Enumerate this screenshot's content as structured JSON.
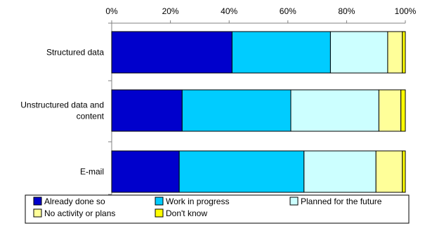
{
  "chart_data": {
    "type": "bar",
    "orientation": "horizontal",
    "stacked": true,
    "percent_stacked": true,
    "title": "",
    "xlabel": "",
    "ylabel": "",
    "xlim": [
      0,
      100
    ],
    "x_ticks": [
      "0%",
      "20%",
      "40%",
      "60%",
      "80%",
      "100%"
    ],
    "grid": false,
    "legend_position": "bottom",
    "categories": [
      [
        "Structured data"
      ],
      [
        "Unstructured data and",
        "content"
      ],
      [
        "E-mail"
      ]
    ],
    "series": [
      {
        "name": "Already done so",
        "color": "#0000CC",
        "values": [
          41,
          24,
          23
        ]
      },
      {
        "name": "Work in progress",
        "color": "#00CCFF",
        "values": [
          33.5,
          37,
          42.5
        ]
      },
      {
        "name": "Planned for the future",
        "color": "#CCFFFF",
        "values": [
          19.5,
          30,
          24.5
        ]
      },
      {
        "name": "No activity or plans",
        "color": "#FFFF99",
        "values": [
          5,
          7.5,
          9
        ]
      },
      {
        "name": "Don't know",
        "color": "#FFFF00",
        "values": [
          1,
          1.5,
          1
        ]
      }
    ]
  }
}
